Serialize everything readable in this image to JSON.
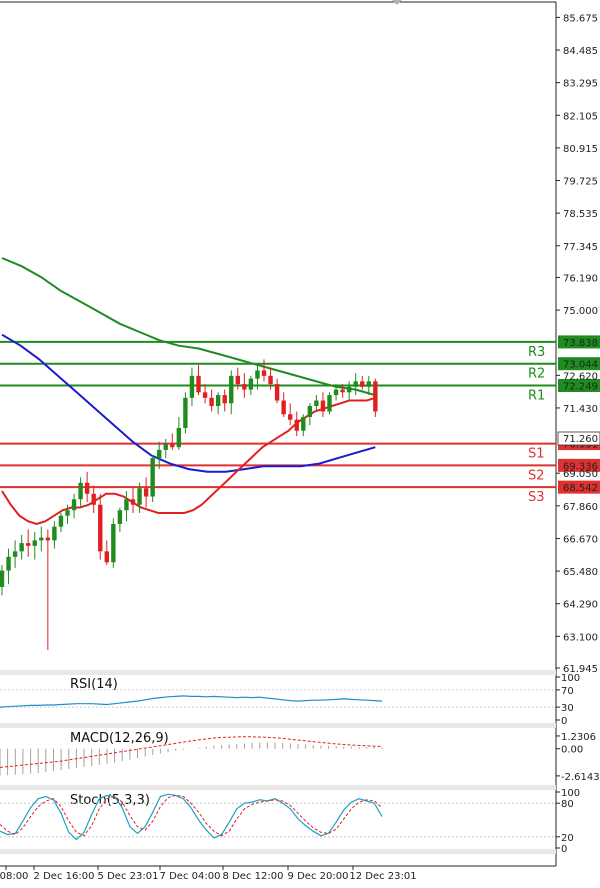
{
  "chart_data": {
    "type": "candlestick",
    "price_axis": {
      "range": [
        61.945,
        86.2
      ],
      "ticks": [
        "85.675",
        "84.485",
        "83.295",
        "82.105",
        "80.915",
        "79.725",
        "78.535",
        "77.345",
        "76.190",
        "75.000",
        "72.620",
        "71.430",
        "69.050",
        "67.860",
        "66.670",
        "65.480",
        "64.290",
        "63.100",
        "61.945"
      ]
    },
    "x_axis": {
      "labels": [
        "08:00",
        "2 Dec 16:00",
        "5 Dec 23:01",
        "7 Dec 04:00",
        "8 Dec 12:00",
        "9 Dec 20:00",
        "12 Dec 23:01"
      ]
    },
    "current_price": "71.260",
    "levels": [
      {
        "name": "R3",
        "value": 73.838,
        "label": "73.838",
        "color": "#1e8c1e"
      },
      {
        "name": "R2",
        "value": 73.044,
        "label": "73.044",
        "color": "#1e8c1e"
      },
      {
        "name": "R1",
        "value": 72.249,
        "label": "72.249",
        "color": "#1e8c1e"
      },
      {
        "name": "S1",
        "value": 70.131,
        "label": "70.131",
        "color": "#e03030"
      },
      {
        "name": "S2",
        "value": 69.336,
        "label": "69.336",
        "color": "#e03030"
      },
      {
        "name": "S3",
        "value": 68.542,
        "label": "68.542",
        "color": "#e03030"
      }
    ],
    "candles": [
      [
        64.9,
        65.7,
        64.6,
        65.5
      ],
      [
        65.5,
        66.3,
        65.0,
        66.0
      ],
      [
        66.0,
        66.6,
        65.6,
        66.2
      ],
      [
        66.2,
        66.8,
        65.9,
        66.5
      ],
      [
        66.5,
        67.0,
        66.0,
        66.4
      ],
      [
        66.4,
        66.9,
        65.9,
        66.6
      ],
      [
        66.6,
        67.1,
        66.2,
        66.7
      ],
      [
        66.7,
        67.0,
        62.6,
        66.6
      ],
      [
        66.6,
        67.3,
        66.3,
        67.1
      ],
      [
        67.1,
        67.6,
        66.9,
        67.5
      ],
      [
        67.5,
        67.9,
        67.2,
        67.7
      ],
      [
        67.7,
        68.3,
        67.4,
        68.1
      ],
      [
        68.1,
        68.9,
        67.8,
        68.7
      ],
      [
        68.7,
        69.1,
        68.0,
        68.3
      ],
      [
        68.3,
        68.6,
        67.6,
        67.9
      ],
      [
        67.9,
        68.3,
        65.9,
        66.2
      ],
      [
        66.2,
        66.6,
        65.7,
        65.8
      ],
      [
        65.8,
        67.4,
        65.6,
        67.2
      ],
      [
        67.2,
        67.8,
        66.9,
        67.7
      ],
      [
        67.7,
        68.4,
        67.3,
        68.1
      ],
      [
        68.1,
        68.5,
        67.6,
        67.9
      ],
      [
        67.9,
        68.7,
        67.6,
        68.5
      ],
      [
        68.5,
        68.9,
        67.8,
        68.2
      ],
      [
        68.2,
        69.7,
        68.0,
        69.6
      ],
      [
        69.6,
        70.2,
        69.2,
        69.9
      ],
      [
        69.9,
        70.3,
        69.6,
        70.1
      ],
      [
        70.1,
        70.5,
        69.9,
        70.0
      ],
      [
        70.0,
        71.1,
        69.9,
        70.7
      ],
      [
        70.7,
        72.0,
        70.5,
        71.8
      ],
      [
        71.8,
        72.9,
        71.5,
        72.6
      ],
      [
        72.6,
        73.0,
        71.9,
        72.0
      ],
      [
        72.0,
        72.3,
        71.6,
        71.8
      ],
      [
        71.8,
        72.1,
        71.3,
        71.5
      ],
      [
        71.5,
        72.0,
        71.2,
        71.9
      ],
      [
        71.9,
        72.1,
        71.3,
        71.6
      ],
      [
        71.6,
        72.8,
        71.2,
        72.6
      ],
      [
        72.6,
        72.9,
        72.1,
        72.3
      ],
      [
        72.3,
        72.7,
        71.8,
        72.1
      ],
      [
        72.1,
        72.6,
        71.9,
        72.5
      ],
      [
        72.5,
        73.0,
        72.1,
        72.8
      ],
      [
        72.8,
        73.2,
        72.4,
        72.6
      ],
      [
        72.6,
        72.9,
        72.1,
        72.3
      ],
      [
        72.3,
        72.5,
        71.6,
        71.7
      ],
      [
        71.7,
        72.0,
        71.1,
        71.2
      ],
      [
        71.2,
        71.6,
        70.8,
        71.0
      ],
      [
        71.0,
        71.3,
        70.4,
        70.6
      ],
      [
        70.6,
        71.2,
        70.4,
        71.1
      ],
      [
        71.1,
        71.6,
        70.8,
        71.5
      ],
      [
        71.5,
        71.9,
        71.3,
        71.7
      ],
      [
        71.7,
        72.0,
        71.1,
        71.3
      ],
      [
        71.3,
        72.0,
        71.2,
        71.9
      ],
      [
        71.9,
        72.3,
        71.7,
        72.1
      ],
      [
        72.1,
        72.3,
        71.8,
        72.0
      ],
      [
        72.0,
        72.4,
        71.7,
        72.2
      ],
      [
        72.2,
        72.7,
        71.9,
        72.4
      ],
      [
        72.4,
        72.6,
        72.1,
        72.2
      ],
      [
        72.2,
        72.6,
        71.9,
        72.4
      ],
      [
        72.4,
        72.5,
        71.1,
        71.3
      ]
    ],
    "ma_red": [
      68.4,
      67.9,
      67.5,
      67.3,
      67.2,
      67.3,
      67.5,
      67.7,
      67.8,
      67.8,
      67.9,
      68.1,
      68.3,
      68.3,
      68.2,
      68.0,
      67.8,
      67.7,
      67.6,
      67.6,
      67.6,
      67.6,
      67.7,
      67.9,
      68.2,
      68.5,
      68.8,
      69.1,
      69.4,
      69.7,
      70.0,
      70.2,
      70.4,
      70.6,
      70.9,
      71.1,
      71.3,
      71.4,
      71.5,
      71.6,
      71.7,
      71.7,
      71.7,
      71.8
    ],
    "ma_green": [
      76.9,
      76.6,
      76.2,
      75.7,
      75.3,
      74.9,
      74.5,
      74.2,
      73.9,
      73.7,
      73.6,
      73.4,
      73.2,
      73.0,
      72.8,
      72.6,
      72.4,
      72.2,
      72.1,
      71.9
    ],
    "ma_blue": [
      74.1,
      73.7,
      73.2,
      72.6,
      72.0,
      71.4,
      70.8,
      70.2,
      69.7,
      69.4,
      69.2,
      69.1,
      69.1,
      69.2,
      69.3,
      69.3,
      69.3,
      69.4,
      69.6,
      69.8,
      70.0
    ],
    "rsi": {
      "title": "RSI(14)",
      "range": [
        0,
        100
      ],
      "ticks": [
        "100",
        "70",
        "30",
        "0"
      ],
      "values": [
        30,
        31,
        32,
        33,
        34,
        34,
        35,
        35,
        36,
        37,
        38,
        38,
        38,
        37,
        36,
        38,
        40,
        42,
        44,
        47,
        50,
        52,
        54,
        55,
        56,
        55,
        55,
        54,
        55,
        54,
        53,
        52,
        53,
        52,
        53,
        51,
        49,
        47,
        45,
        44,
        45,
        46,
        46,
        47,
        48,
        49,
        48,
        47,
        46,
        45,
        44
      ]
    },
    "macd": {
      "title": "MACD(12,26,9)",
      "range": [
        -3.3,
        1.9
      ],
      "ticks": [
        "1.2306",
        "0.00",
        "-2.6143"
      ],
      "histogram": [
        -2.6,
        -2.55,
        -2.5,
        -2.45,
        -2.4,
        -2.35,
        -2.25,
        -2.15,
        -2.05,
        -1.95,
        -1.85,
        -1.75,
        -1.65,
        -1.55,
        -1.45,
        -1.35,
        -1.2,
        -1.05,
        -0.9,
        -0.75,
        -0.6,
        -0.45,
        -0.35,
        -0.2,
        -0.1,
        0.0,
        0.1,
        0.2,
        0.3,
        0.35,
        0.4,
        0.45,
        0.5,
        0.55,
        0.6,
        0.6,
        0.6,
        0.55,
        0.5,
        0.45,
        0.4,
        0.35,
        0.3,
        0.28,
        0.25,
        0.22,
        0.2,
        0.18,
        0.16,
        0.15,
        0.14
      ],
      "signal": [
        -1.8,
        -1.7,
        -1.6,
        -1.5,
        -1.4,
        -1.3,
        -1.2,
        -1.05,
        -0.9,
        -0.75,
        -0.6,
        -0.45,
        -0.3,
        -0.15,
        0.0,
        0.15,
        0.3,
        0.45,
        0.6,
        0.75,
        0.88,
        1.0,
        1.08,
        1.12,
        1.15,
        1.15,
        1.12,
        1.08,
        1.0,
        0.9,
        0.8,
        0.7,
        0.6,
        0.5,
        0.42,
        0.35,
        0.3,
        0.25,
        0.22
      ]
    },
    "stoch": {
      "title": "Stoch(5,3,3)",
      "range": [
        0,
        100
      ],
      "ticks": [
        "100",
        "80",
        "20",
        "0"
      ],
      "k": [
        30,
        24,
        26,
        48,
        72,
        88,
        92,
        86,
        62,
        28,
        15,
        28,
        60,
        88,
        94,
        92,
        72,
        38,
        26,
        38,
        64,
        92,
        96,
        94,
        88,
        72,
        50,
        32,
        18,
        24,
        46,
        70,
        80,
        82,
        86,
        84,
        88,
        80,
        70,
        52,
        40,
        30,
        22,
        26,
        46,
        68,
        82,
        88,
        84,
        80,
        56
      ],
      "d": [
        42,
        30,
        24,
        36,
        56,
        74,
        84,
        88,
        74,
        48,
        28,
        22,
        40,
        70,
        88,
        92,
        82,
        58,
        38,
        32,
        48,
        74,
        90,
        94,
        92,
        80,
        64,
        44,
        30,
        22,
        30,
        52,
        70,
        78,
        82,
        84,
        86,
        84,
        76,
        62,
        48,
        36,
        28,
        26,
        34,
        52,
        70,
        82,
        86,
        84,
        72
      ]
    }
  }
}
